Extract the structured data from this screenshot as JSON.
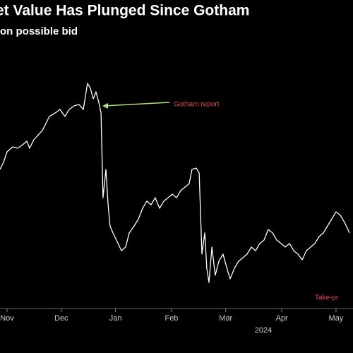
{
  "chart_data": {
    "type": "line",
    "title": "et Value Has Plunged Since Gotham",
    "subtitle": "on possible bid",
    "annotations": [
      {
        "text": "Gotham report",
        "color": "#e0455a",
        "arrow_color": "#b5e07a"
      },
      {
        "text": "Take-pr",
        "color": "#e0455a"
      }
    ],
    "year_label": "2024",
    "x": [
      -3.9,
      -2,
      0,
      3.1,
      5.9,
      8.6,
      10.9,
      12.5,
      14.8,
      17.6,
      19.5,
      21.5,
      23.4,
      26.6,
      29.3,
      32,
      34.4,
      37.1,
      39.8,
      42.2,
      44.5,
      46.1,
      47.7,
      49.2,
      50.8,
      52,
      53.1,
      54.7,
      55.9,
      57,
      58.6,
      60.5,
      63.3,
      65.6,
      67.6,
      70.3,
      72.7,
      75,
      77.3,
      79.7,
      82,
      84.4,
      86.7,
      89.1,
      91.4,
      93.8,
      96.1,
      98.4,
      100.8,
      102.3,
      104.7,
      106.3,
      107.8,
      109.4,
      110.5,
      111.7,
      113.3,
      115.2,
      117.2,
      119.5,
      121.1,
      123.4,
      125.8,
      128.1,
      130.5,
      132.8,
      135.2,
      137.5,
      139.8,
      142.2,
      144.5,
      146.9,
      149.2,
      151.6,
      153.9,
      156.3,
      158.6,
      160.9,
      163.3,
      165.6,
      168,
      170.3,
      172.7,
      175,
      177.3,
      179.7,
      182,
      184.4,
      186.7,
      189.5
    ],
    "series": [
      {
        "color": "#ffffff",
        "values": [
          66.7,
          70,
          75,
          77.3,
          76.7,
          78.3,
          80,
          76.7,
          80.7,
          83.3,
          85,
          88.3,
          91.7,
          93.3,
          95,
          91.7,
          95,
          96.7,
          97.3,
          95,
          107.3,
          105,
          100,
          103.3,
          98.3,
          93.3,
          53.3,
          66.7,
          50,
          40,
          36.7,
          33.3,
          28.3,
          30,
          36.7,
          40,
          43.3,
          48.3,
          51.7,
          50,
          53.3,
          48.3,
          51.7,
          53.3,
          55,
          53.3,
          56.7,
          58.3,
          60,
          66.7,
          67.3,
          65,
          26.7,
          36.7,
          20,
          13.3,
          30,
          16.7,
          23.3,
          26.7,
          21.7,
          15,
          20,
          23.3,
          25,
          26.7,
          30,
          28.3,
          31.7,
          33.3,
          38.3,
          36.7,
          33.3,
          31.7,
          30,
          31.7,
          28.3,
          26.7,
          24,
          28.3,
          30,
          31.7,
          35,
          36.7,
          40,
          43.3,
          46.7,
          45,
          41.7,
          36.7
        ]
      }
    ],
    "xlim": [
      -3.9,
      191.4
    ],
    "ylim": [
      0,
      120
    ],
    "xticks": [
      {
        "value": 0,
        "label": "Nov"
      },
      {
        "value": 30,
        "label": "Dec"
      },
      {
        "value": 60,
        "label": "Jan"
      },
      {
        "value": 91,
        "label": "Feb"
      },
      {
        "value": 121,
        "label": "Mar"
      },
      {
        "value": 152,
        "label": "Apr"
      },
      {
        "value": 182,
        "label": "May"
      }
    ]
  }
}
